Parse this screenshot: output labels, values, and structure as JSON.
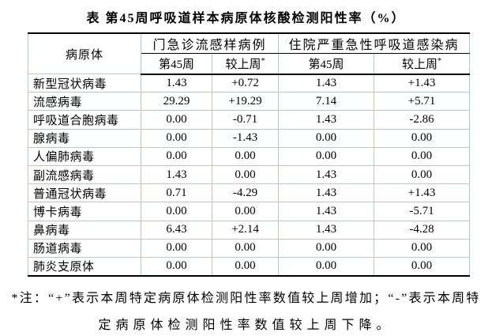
{
  "title": "表 第45周呼吸道样本病原体核酸检测阳性率（%）",
  "table": {
    "corner_header": "病原体",
    "group_headers": [
      "门急诊流感样病例",
      "住院严重急性呼吸道感染病"
    ],
    "sub_headers": [
      {
        "label": "第45周",
        "sup": ""
      },
      {
        "label": "较上周",
        "sup": "*"
      },
      {
        "label": "第45周",
        "sup": ""
      },
      {
        "label": "较上周",
        "sup": "*"
      }
    ],
    "rows": [
      {
        "pathogen": "新型冠状病毒",
        "values": [
          "1.43",
          "+0.72",
          "1.43",
          "+1.43"
        ]
      },
      {
        "pathogen": "流感病毒",
        "values": [
          "29.29",
          "+19.29",
          "7.14",
          "+5.71"
        ]
      },
      {
        "pathogen": "呼吸道合胞病毒",
        "values": [
          "0.00",
          "-0.71",
          "1.43",
          "-2.86"
        ]
      },
      {
        "pathogen": "腺病毒",
        "values": [
          "0.00",
          "-1.43",
          "0.00",
          "0.00"
        ]
      },
      {
        "pathogen": "人偏肺病毒",
        "values": [
          "0.00",
          "0.00",
          "0.00",
          "0.00"
        ]
      },
      {
        "pathogen": "副流感病毒",
        "values": [
          "1.43",
          "0.00",
          "1.43",
          "0.00"
        ]
      },
      {
        "pathogen": "普通冠状病毒",
        "values": [
          "0.71",
          "-4.29",
          "1.43",
          "+1.43"
        ]
      },
      {
        "pathogen": "博卡病毒",
        "values": [
          "0.00",
          "0.00",
          "1.43",
          "-5.71"
        ]
      },
      {
        "pathogen": "鼻病毒",
        "values": [
          "6.43",
          "+2.14",
          "1.43",
          "-4.28"
        ]
      },
      {
        "pathogen": "肠道病毒",
        "values": [
          "0.00",
          "0.00",
          "0.00",
          "0.00"
        ]
      },
      {
        "pathogen": "肺炎支原体",
        "values": [
          "0.00",
          "0.00",
          "0.00",
          "0.00"
        ]
      }
    ]
  },
  "footnote": {
    "line1": "*注：“+”表示本周特定病原体检测阳性率数值较上周增加；“-”表示本周特",
    "line2": "定病原体检测阳性率数值较上周下降。"
  },
  "colors": {
    "grid": "#b7cdbb",
    "border": "#000000",
    "text": "#000000",
    "background": "#ffffff"
  }
}
